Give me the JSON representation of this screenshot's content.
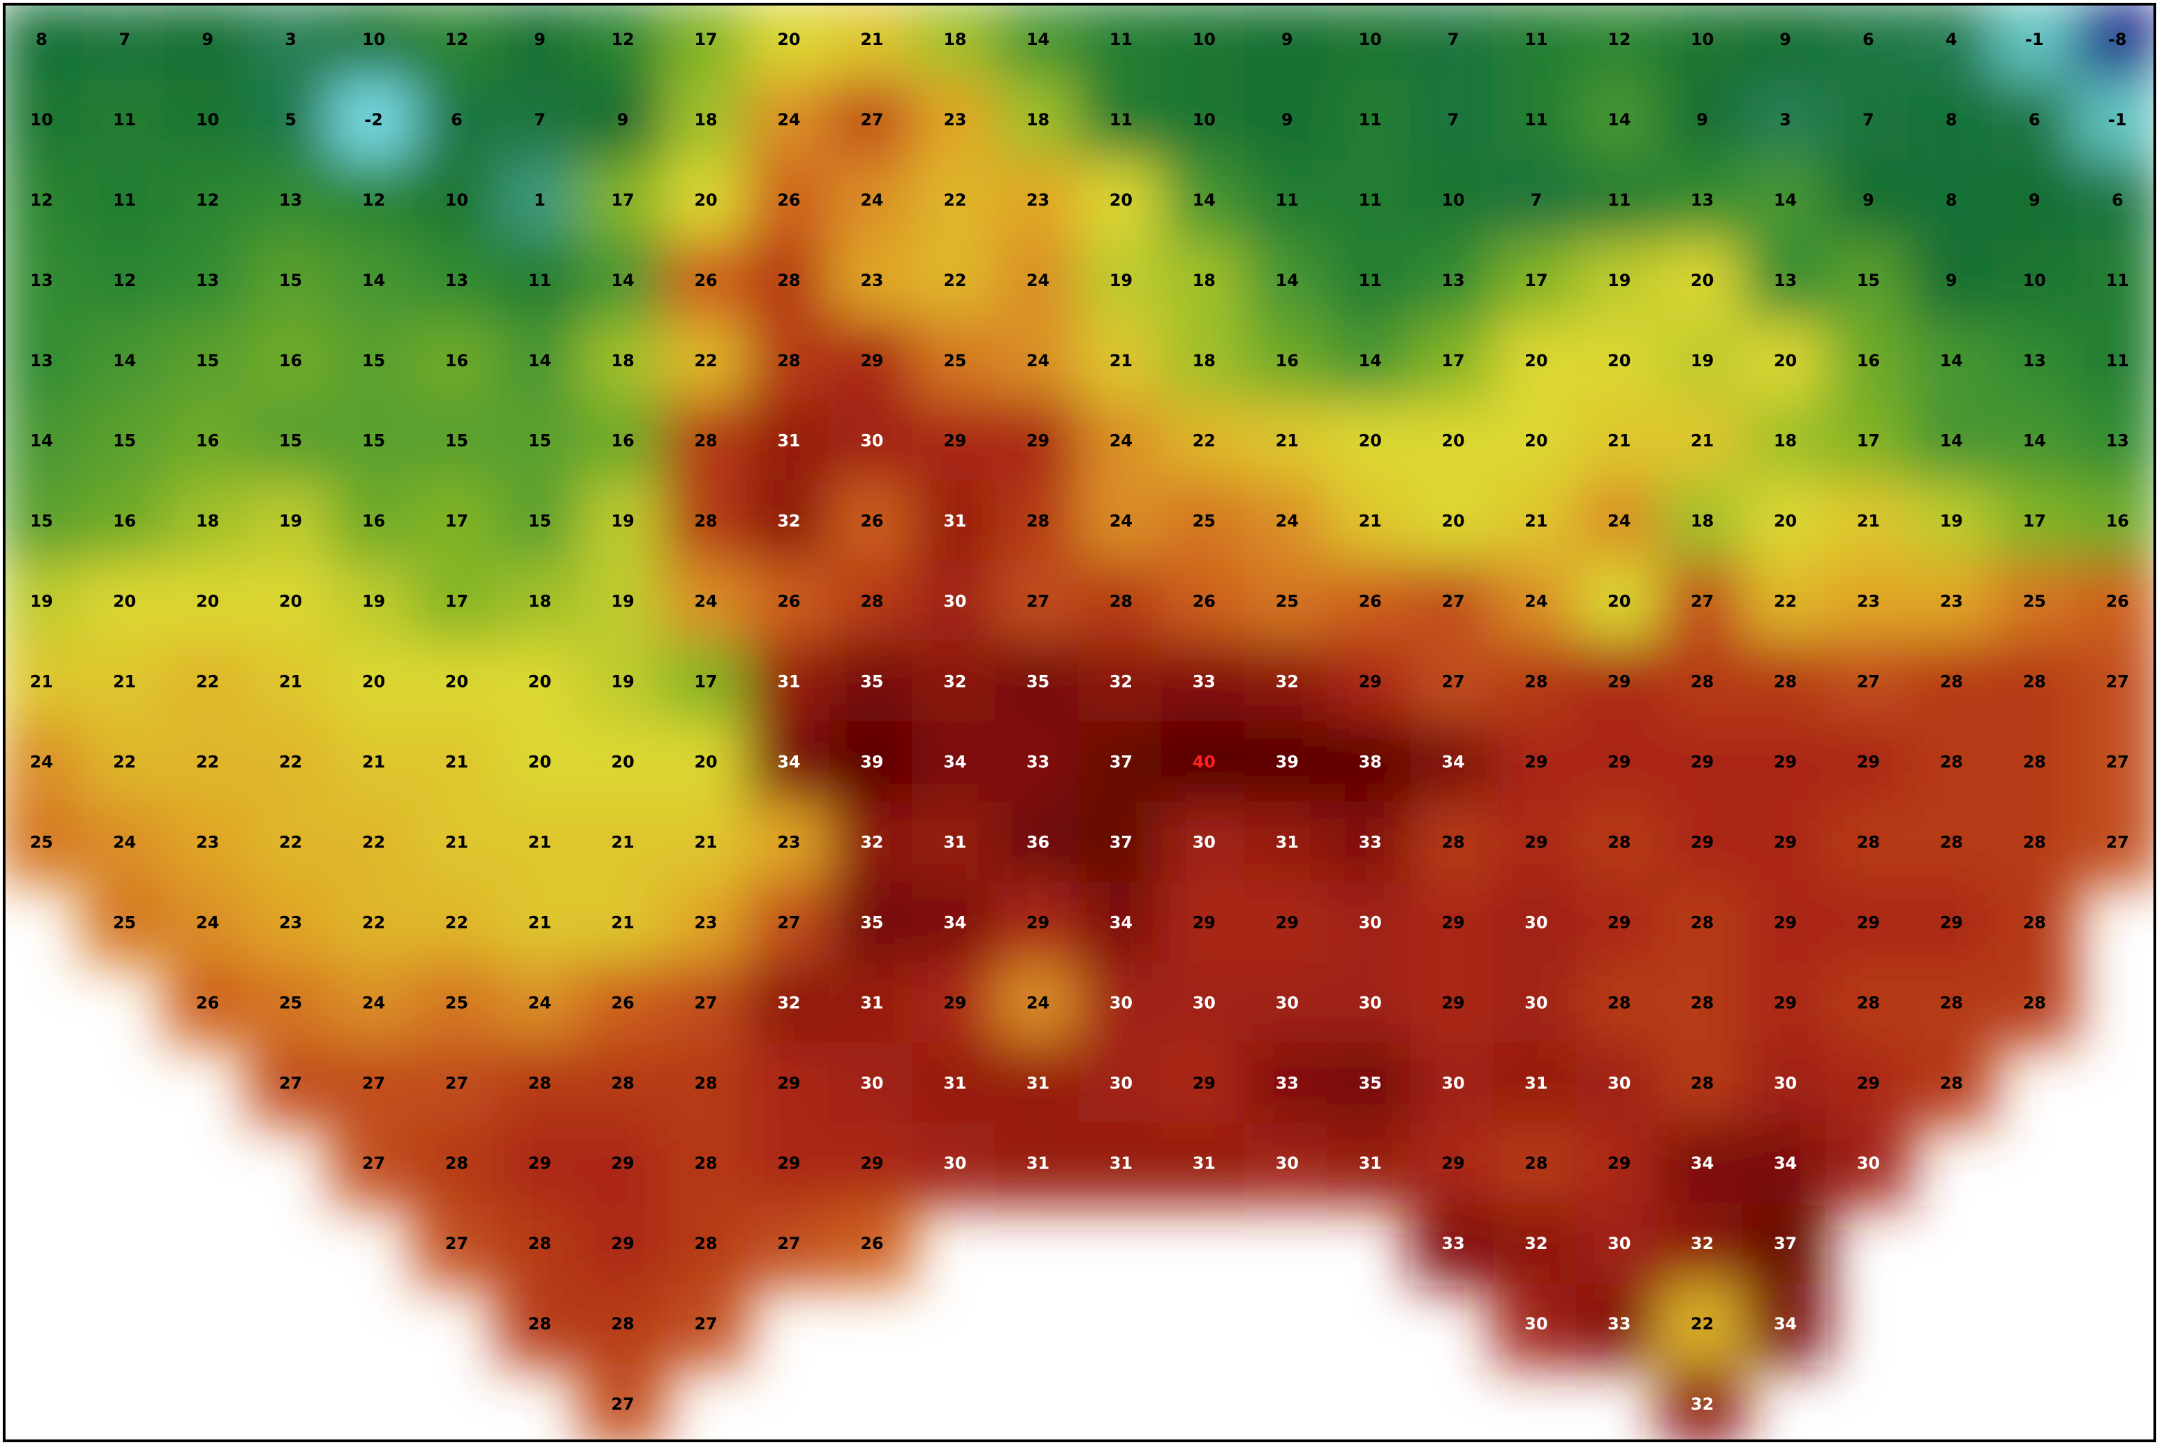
{
  "map": {
    "rows": [
      [
        8,
        7,
        9,
        3,
        10,
        12,
        9,
        12,
        17,
        20,
        21,
        18,
        14,
        11,
        10,
        9,
        10,
        7,
        11,
        12,
        10,
        9,
        6,
        4,
        -1,
        -8
      ],
      [
        10,
        11,
        10,
        5,
        -2,
        6,
        7,
        9,
        18,
        24,
        27,
        23,
        18,
        11,
        10,
        9,
        11,
        7,
        11,
        14,
        9,
        3,
        7,
        8,
        6,
        -1
      ],
      [
        12,
        11,
        12,
        13,
        12,
        10,
        1,
        17,
        20,
        26,
        24,
        22,
        23,
        20,
        14,
        11,
        11,
        10,
        7,
        11,
        13,
        14,
        9,
        8,
        9,
        6
      ],
      [
        13,
        12,
        13,
        15,
        14,
        13,
        11,
        14,
        26,
        28,
        23,
        22,
        24,
        19,
        18,
        14,
        11,
        13,
        17,
        19,
        20,
        13,
        15,
        9,
        10,
        11
      ],
      [
        13,
        14,
        15,
        16,
        15,
        16,
        14,
        18,
        22,
        28,
        29,
        25,
        24,
        21,
        18,
        16,
        14,
        17,
        20,
        20,
        19,
        20,
        16,
        14,
        13,
        11
      ],
      [
        14,
        15,
        16,
        15,
        15,
        15,
        15,
        16,
        28,
        31,
        30,
        29,
        29,
        24,
        22,
        21,
        20,
        20,
        20,
        21,
        21,
        18,
        17,
        14,
        14,
        13
      ],
      [
        15,
        16,
        18,
        19,
        16,
        17,
        15,
        19,
        28,
        32,
        26,
        31,
        28,
        24,
        25,
        24,
        21,
        20,
        21,
        24,
        18,
        20,
        21,
        19,
        17,
        16
      ],
      [
        19,
        20,
        20,
        20,
        19,
        17,
        18,
        19,
        24,
        26,
        28,
        30,
        27,
        28,
        26,
        25,
        26,
        27,
        24,
        20,
        27,
        22,
        23,
        23,
        25,
        26
      ],
      [
        21,
        21,
        22,
        21,
        20,
        20,
        20,
        19,
        17,
        31,
        35,
        32,
        35,
        32,
        33,
        32,
        29,
        27,
        28,
        29,
        28,
        28,
        27,
        28,
        28,
        27
      ],
      [
        24,
        22,
        22,
        22,
        21,
        21,
        20,
        20,
        20,
        34,
        39,
        34,
        33,
        37,
        40,
        39,
        38,
        34,
        29,
        29,
        29,
        29,
        29,
        28,
        28,
        27
      ],
      [
        25,
        24,
        23,
        22,
        22,
        21,
        21,
        21,
        21,
        23,
        32,
        31,
        36,
        37,
        30,
        31,
        33,
        28,
        29,
        28,
        29,
        29,
        28,
        28,
        28,
        27
      ],
      [
        null,
        25,
        24,
        23,
        22,
        22,
        21,
        21,
        23,
        27,
        35,
        34,
        29,
        34,
        29,
        29,
        30,
        29,
        30,
        29,
        28,
        29,
        29,
        29,
        28,
        null
      ],
      [
        null,
        null,
        26,
        25,
        24,
        25,
        24,
        26,
        27,
        32,
        31,
        29,
        24,
        30,
        30,
        30,
        30,
        29,
        30,
        28,
        28,
        29,
        28,
        28,
        28,
        null
      ],
      [
        null,
        null,
        null,
        27,
        27,
        27,
        28,
        28,
        28,
        29,
        30,
        31,
        31,
        30,
        29,
        33,
        35,
        30,
        31,
        30,
        28,
        30,
        29,
        28,
        null,
        null
      ],
      [
        null,
        null,
        null,
        null,
        27,
        28,
        29,
        29,
        28,
        29,
        29,
        30,
        31,
        31,
        31,
        30,
        31,
        29,
        28,
        29,
        34,
        34,
        30,
        null,
        null,
        null
      ],
      [
        null,
        null,
        null,
        null,
        null,
        27,
        28,
        29,
        28,
        27,
        26,
        null,
        null,
        null,
        null,
        null,
        null,
        33,
        32,
        30,
        32,
        37,
        null,
        null,
        null,
        null
      ],
      [
        null,
        null,
        null,
        null,
        null,
        null,
        28,
        28,
        27,
        null,
        null,
        null,
        null,
        null,
        null,
        null,
        null,
        null,
        30,
        33,
        22,
        34,
        null,
        null,
        null,
        null
      ],
      [
        null,
        null,
        null,
        null,
        null,
        null,
        null,
        27,
        null,
        null,
        null,
        null,
        null,
        null,
        null,
        null,
        null,
        null,
        null,
        null,
        32,
        null,
        null,
        null,
        null,
        null
      ]
    ]
  }
}
